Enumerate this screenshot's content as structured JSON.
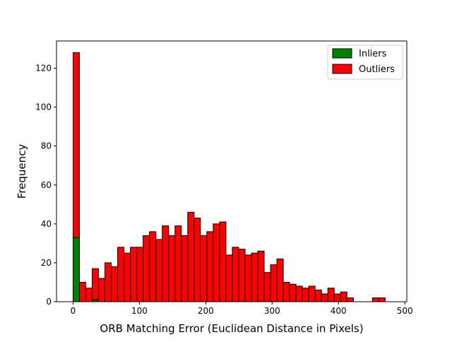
{
  "chart_data": {
    "type": "bar",
    "stacked": true,
    "title": "",
    "xlabel": "ORB Matching Error (Euclidean Distance in Pixels)",
    "ylabel": "Frequency",
    "xlim": [
      -25,
      503
    ],
    "ylim": [
      0,
      134
    ],
    "xticks": [
      0,
      100,
      200,
      300,
      400,
      500
    ],
    "yticks": [
      0,
      20,
      40,
      60,
      80,
      100,
      120
    ],
    "legend_position": "top-right",
    "bin_start": 0,
    "bin_width": 9.6,
    "series": [
      {
        "name": "Inliers",
        "color": "#008000",
        "values": [
          33,
          0,
          0,
          1,
          0,
          0,
          0,
          0,
          0,
          0,
          0,
          0,
          0,
          0,
          0,
          0,
          0,
          0,
          0,
          0,
          0,
          0,
          0,
          0,
          0,
          0,
          0,
          0,
          0,
          0,
          0,
          0,
          0,
          0,
          0,
          0,
          0,
          0,
          0,
          0,
          0,
          0,
          0,
          0,
          0,
          0,
          0,
          0,
          0,
          0
        ]
      },
      {
        "name": "Outliers",
        "color": "#ff0000",
        "values": [
          95,
          10,
          7,
          16,
          12,
          20,
          18,
          28,
          25,
          28,
          28,
          34,
          36,
          32,
          39,
          34,
          39,
          34,
          46,
          43,
          34,
          36,
          40,
          41,
          24,
          28,
          27,
          24,
          25,
          26,
          15,
          19,
          22,
          10,
          9,
          8,
          7,
          8,
          6,
          4,
          7,
          4,
          5,
          2,
          0,
          0,
          0,
          2,
          2,
          0
        ]
      }
    ]
  }
}
